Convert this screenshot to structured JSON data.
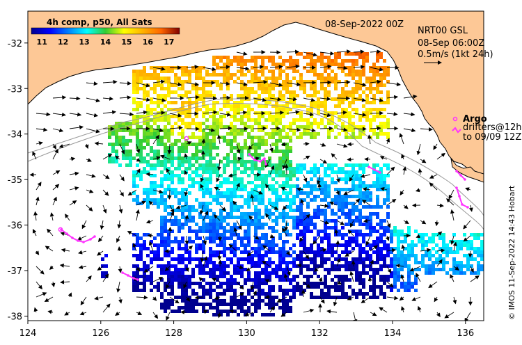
{
  "map": {
    "product_label": "4h comp, p50, All Sats",
    "date_label": "08-Sep-2022 00Z",
    "colorbar": {
      "ticks": [
        "11",
        "12",
        "13",
        "14",
        "15",
        "16",
        "17"
      ],
      "min": 10.5,
      "max": 17.5,
      "colormap": "jet"
    },
    "current_info": {
      "line1": "NRT00 GSL",
      "line2": "08-Sep 06:00Z",
      "line3": "0.5m/s (1kt 24h)"
    },
    "legend": {
      "argo_label": "Argo",
      "drifters_line1": "drifters@12h",
      "drifters_line2": "to 09/09 12Z"
    },
    "credit": "© IMOS 11-Sep-2022 14:43 Hobart",
    "x_axis": {
      "ticks": [
        "124",
        "126",
        "128",
        "130",
        "132",
        "134",
        "136"
      ],
      "range": [
        124,
        136.5
      ]
    },
    "y_axis": {
      "ticks": [
        "-32",
        "-33",
        "-34",
        "-35",
        "-36",
        "-37",
        "-38"
      ],
      "range": [
        -38.1,
        -31.3
      ]
    },
    "colors": {
      "land": "#fdc896",
      "coast": "#000000",
      "drifters": "#ff33ff",
      "bathy": "#999999"
    }
  }
}
